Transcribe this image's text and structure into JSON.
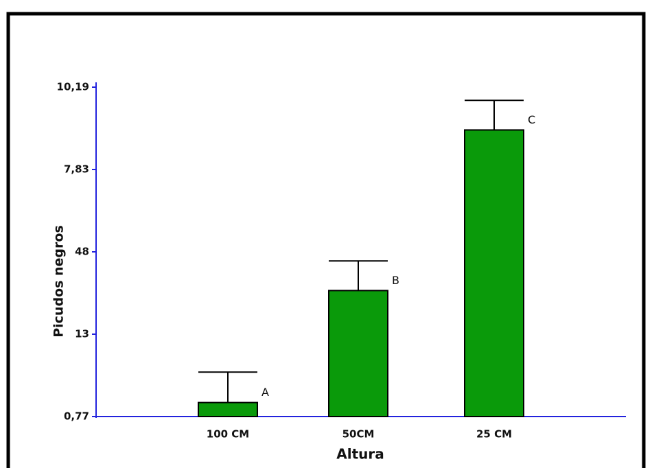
{
  "chart_data": {
    "type": "bar",
    "categories": [
      "100 CM",
      "50CM",
      "25 CM"
    ],
    "values": [
      0.17,
      1.53,
      3.48
    ],
    "errors": [
      0.37,
      0.36,
      0.36
    ],
    "annotations": [
      "A",
      "B",
      "C"
    ],
    "color": "#0a9a0a",
    "ylim": [
      0,
      4
    ],
    "yticks": [
      {
        "value": 0,
        "label": "0,77"
      },
      {
        "value": 1,
        "label": "13"
      },
      {
        "value": 2,
        "label": "48"
      },
      {
        "value": 3,
        "label": "7,83"
      },
      {
        "value": 4,
        "label": "10,19"
      }
    ],
    "y_label": "Picudos negros",
    "x_label": "Altura"
  }
}
